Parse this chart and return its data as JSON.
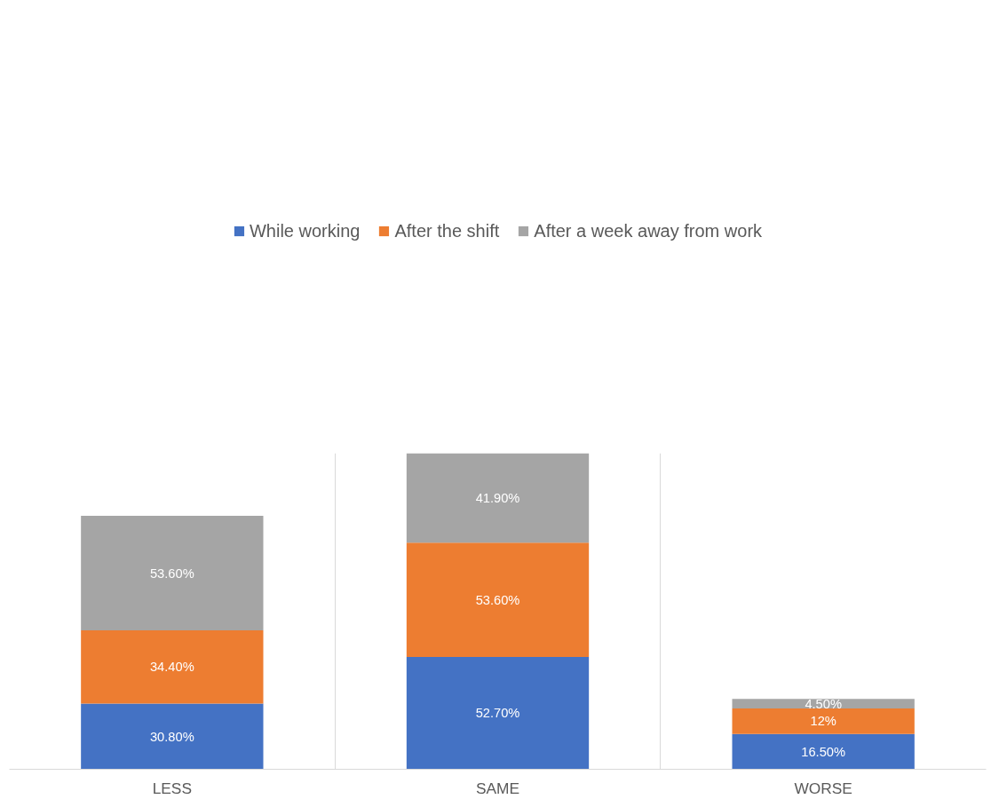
{
  "chart_data": {
    "type": "bar",
    "stacked": true,
    "categories": [
      "LESS",
      "SAME",
      "WORSE"
    ],
    "series": [
      {
        "name": "While working",
        "color": "#4472c4",
        "values": [
          30.8,
          52.7,
          16.5
        ],
        "value_labels": [
          "30.80%",
          "52.70%",
          "16.50%"
        ]
      },
      {
        "name": "After the shift",
        "color": "#ed7d31",
        "values": [
          34.4,
          53.6,
          12
        ],
        "value_labels": [
          "34.40%",
          "53.60%",
          "12%"
        ]
      },
      {
        "name": "After a week away from work",
        "color": "#a5a5a5",
        "values": [
          53.6,
          41.9,
          4.5
        ],
        "value_labels": [
          "53.60%",
          "41.90%",
          "4.50%"
        ]
      }
    ],
    "grid": "x",
    "legend": "top"
  }
}
